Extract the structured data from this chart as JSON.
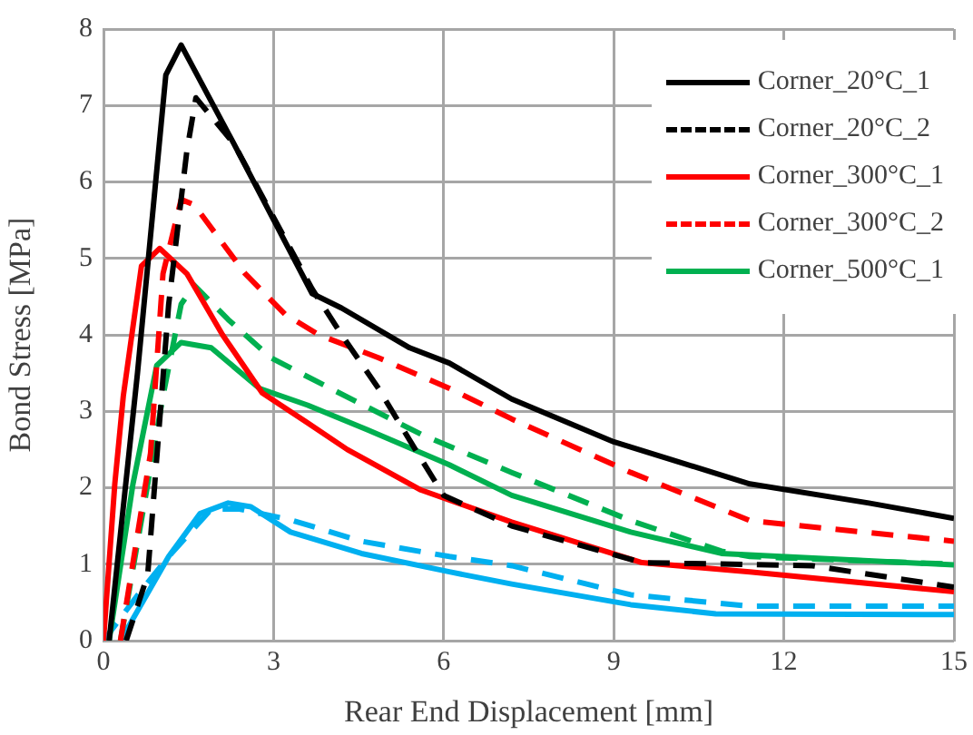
{
  "chart_data": {
    "type": "line",
    "xlabel": "Rear End Displacement [mm]",
    "ylabel": "Bond Stress [MPa]",
    "xlim": [
      0,
      15
    ],
    "xticks": [
      0,
      3,
      6,
      9,
      12,
      15
    ],
    "ylim": [
      0,
      8
    ],
    "yticks": [
      0,
      1,
      2,
      3,
      4,
      5,
      6,
      7,
      8
    ],
    "grid": true,
    "legend": "top right",
    "marker": "none",
    "series": [
      {
        "name": "Corner_20°C_1",
        "color": "#000000",
        "line_style": "solid",
        "x": [
          0.1,
          0.6,
          1.1,
          1.37,
          2.3,
          3.68,
          4.2,
          5.4,
          6.1,
          7.2,
          9.0,
          11.4,
          13.5,
          15
        ],
        "values": [
          0,
          3.5,
          7.4,
          7.79,
          6.5,
          4.54,
          4.35,
          3.83,
          3.63,
          3.16,
          2.6,
          2.05,
          1.8,
          1.6
        ]
      },
      {
        "name": "Corner_20°C_2",
        "color": "#000000",
        "line_style": "dashed",
        "x": [
          0.4,
          0.78,
          1.15,
          1.47,
          1.63,
          2.3,
          3.68,
          4.2,
          4.85,
          5.5,
          6.0,
          7.2,
          9.5,
          12.5,
          15
        ],
        "values": [
          0,
          0.86,
          4.4,
          6.4,
          7.1,
          6.5,
          4.6,
          4.0,
          3.3,
          2.5,
          1.9,
          1.5,
          1.02,
          0.98,
          0.7
        ]
      },
      {
        "name": "Corner_300°C_1",
        "color": "#ff0000",
        "line_style": "solid",
        "x": [
          0,
          0.2,
          0.35,
          0.67,
          0.99,
          1.47,
          2.1,
          2.8,
          3.6,
          4.3,
          5.6,
          7.2,
          9.5,
          11.4,
          15
        ],
        "values": [
          0,
          2.05,
          3.2,
          4.9,
          5.13,
          4.8,
          4.0,
          3.24,
          2.85,
          2.5,
          1.97,
          1.55,
          1.02,
          0.9,
          0.64
        ]
      },
      {
        "name": "Corner_300°C_2",
        "color": "#ff0000",
        "line_style": "dashed",
        "x": [
          0.3,
          0.83,
          1.05,
          1.37,
          1.6,
          2.5,
          3.2,
          3.8,
          4.85,
          6.1,
          7.2,
          9.3,
          11.4,
          15
        ],
        "values": [
          0,
          2.45,
          4.8,
          5.77,
          5.7,
          4.8,
          4.27,
          4.0,
          3.7,
          3.3,
          2.9,
          2.2,
          1.57,
          1.3
        ]
      },
      {
        "name": "Corner_500°C_1",
        "color": "#00b050",
        "line_style": "solid",
        "x": [
          0.1,
          0.52,
          0.94,
          1.37,
          1.9,
          2.75,
          3.6,
          4.65,
          6.1,
          7.2,
          9.3,
          10.9,
          15
        ],
        "values": [
          0,
          2.05,
          3.6,
          3.9,
          3.83,
          3.3,
          3.08,
          2.76,
          2.3,
          1.9,
          1.42,
          1.14,
          0.99
        ]
      },
      {
        "color": "#00b050",
        "line_style": "dashed",
        "x": [
          0.3,
          1.05,
          1.37,
          1.6,
          2.2,
          2.95,
          4.0,
          5.6,
          7.2,
          9.3,
          10.9,
          11.4,
          15
        ],
        "values": [
          0,
          3.2,
          4.4,
          4.65,
          4.2,
          3.7,
          3.3,
          2.7,
          2.2,
          1.57,
          1.17,
          1.1,
          1.0
        ]
      },
      {
        "color": "#00b0f0",
        "line_style": "solid",
        "x": [
          0.3,
          1.15,
          1.7,
          2.2,
          2.6,
          3.3,
          4.55,
          6.1,
          7.2,
          9.3,
          10.8,
          15
        ],
        "values": [
          0,
          1.1,
          1.66,
          1.8,
          1.75,
          1.42,
          1.14,
          0.9,
          0.74,
          0.47,
          0.35,
          0.34
        ]
      },
      {
        "color": "#00b0f0",
        "line_style": "dashed",
        "x": [
          0,
          0.63,
          1.15,
          1.9,
          2.4,
          3.3,
          4.55,
          6.1,
          7.2,
          9.3,
          11.4,
          15
        ],
        "values": [
          0,
          0.62,
          1.1,
          1.72,
          1.72,
          1.58,
          1.3,
          1.1,
          0.98,
          0.6,
          0.45,
          0.45
        ]
      }
    ]
  }
}
